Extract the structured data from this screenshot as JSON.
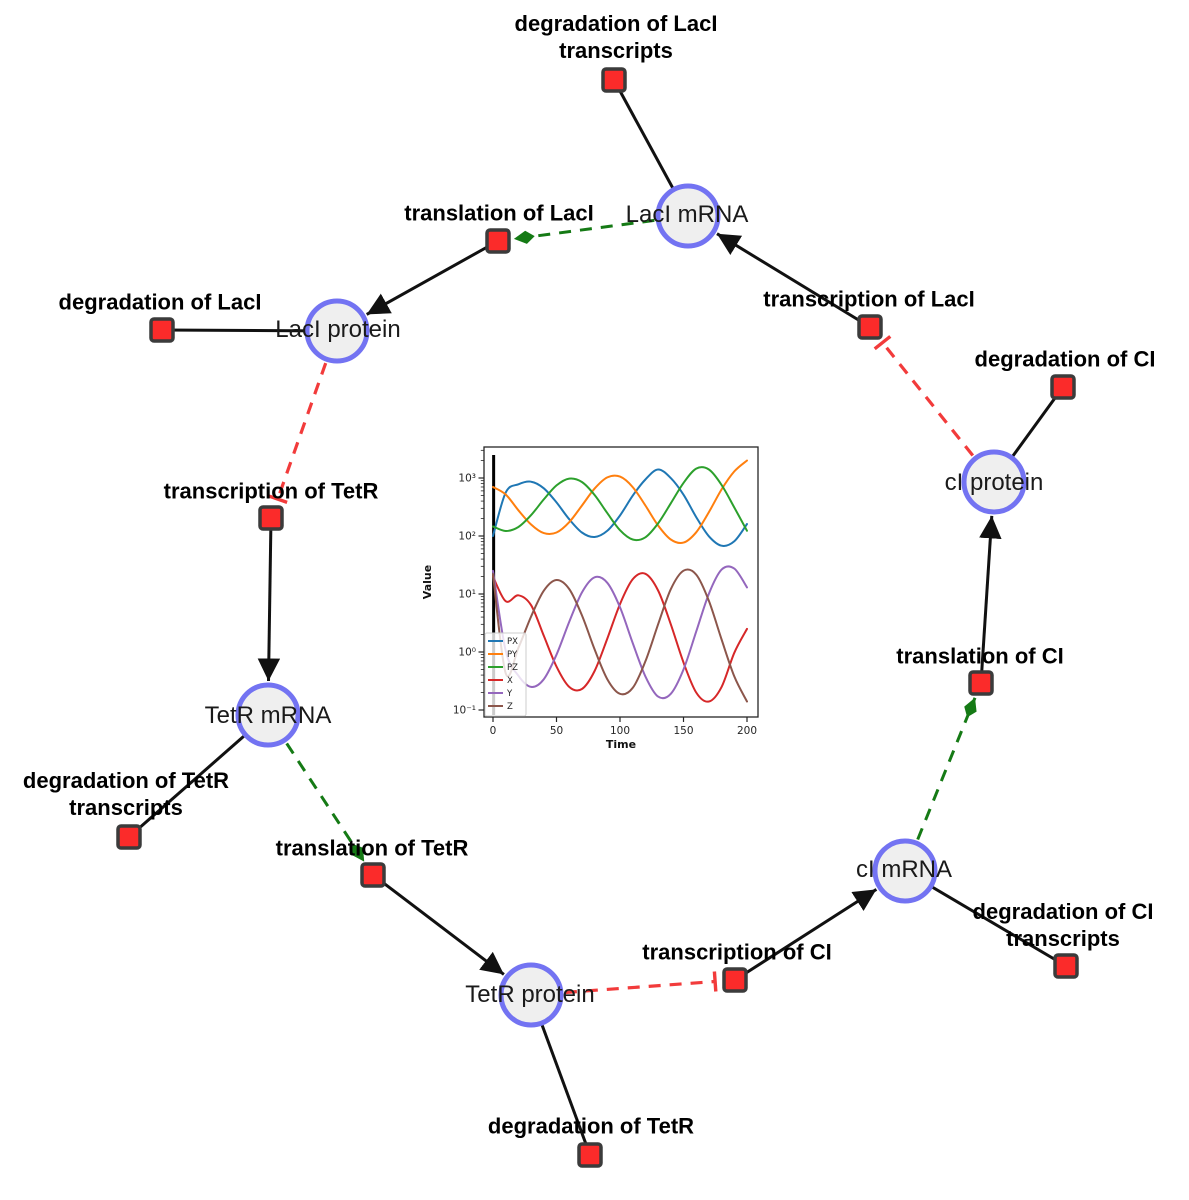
{
  "diagram": {
    "species": [
      {
        "label": "LacI mRNA"
      },
      {
        "label": "LacI protein"
      },
      {
        "label": "TetR mRNA"
      },
      {
        "label": "TetR protein"
      },
      {
        "label": "cI mRNA"
      },
      {
        "label": "cI protein"
      }
    ],
    "reactions": [
      {
        "line1": "degradation of LacI",
        "line2": "transcripts"
      },
      {
        "line1": "translation of LacI"
      },
      {
        "line1": "degradation of LacI"
      },
      {
        "line1": "transcription of LacI"
      },
      {
        "line1": "degradation of CI"
      },
      {
        "line1": "transcription of TetR"
      },
      {
        "line1": "degradation of TetR",
        "line2": "transcripts"
      },
      {
        "line1": "translation of TetR"
      },
      {
        "line1": "translation of CI"
      },
      {
        "line1": "transcription of CI"
      },
      {
        "line1": "degradation of CI",
        "line2": "transcripts"
      },
      {
        "line1": "degradation of TetR"
      }
    ],
    "colors": {
      "species_fill": "#efefef",
      "species_stroke": "#7373f2",
      "reaction_fill": "#fb2b2a",
      "reaction_stroke": "#3b3b3b",
      "flow_edge": "#111111",
      "activation_edge": "#157a15",
      "inhibition_edge": "#f23b3b"
    }
  },
  "chart_data": {
    "type": "line",
    "title": "",
    "xlabel": "Time",
    "ylabel": "Value",
    "y_scale": "log",
    "x_ticks": [
      0,
      50,
      100,
      150,
      200
    ],
    "y_tick_labels": [
      "10⁻¹",
      "10⁰",
      "10¹",
      "10²",
      "10³"
    ],
    "y_tick_exponents": [
      -1,
      0,
      1,
      2,
      3
    ],
    "xlim": [
      -7,
      208
    ],
    "ylim": [
      0.076,
      3500
    ],
    "grid": false,
    "legend_position": "lower left",
    "x": [
      0,
      10,
      20,
      30,
      40,
      50,
      60,
      70,
      80,
      90,
      100,
      110,
      120,
      130,
      140,
      150,
      160,
      170,
      180,
      190,
      200
    ],
    "series": [
      {
        "name": "PX",
        "color": "#1f77b4",
        "values": [
          100,
          560,
          778,
          865,
          664,
          379,
          195,
          115,
          96,
          123,
          226,
          495,
          944,
          1400,
          995,
          516,
          212,
          99,
          68,
          81,
          161
        ]
      },
      {
        "name": "PY",
        "color": "#ff7f0e",
        "values": [
          700,
          520,
          277,
          158,
          112,
          115,
          173,
          334,
          656,
          1024,
          1059,
          698,
          336,
          152,
          87,
          77,
          116,
          258,
          635,
          1300,
          2000
        ]
      },
      {
        "name": "PZ",
        "color": "#2ca02c",
        "values": [
          146,
          122,
          143,
          229,
          428,
          745,
          975,
          853,
          510,
          248,
          126,
          87,
          95,
          165,
          366,
          822,
          1450,
          1400,
          758,
          310,
          123
        ]
      },
      {
        "name": "X",
        "color": "#d62728",
        "values": [
          20,
          7.5,
          9.5,
          6.4,
          1.9,
          0.56,
          0.25,
          0.23,
          0.47,
          1.7,
          6.7,
          17.9,
          22.3,
          11.5,
          3.0,
          0.66,
          0.2,
          0.14,
          0.25,
          0.97,
          2.5
        ]
      },
      {
        "name": "Y",
        "color": "#9467bd",
        "values": [
          25,
          1.05,
          0.39,
          0.25,
          0.34,
          0.9,
          3.3,
          10.6,
          19.4,
          15.6,
          5.9,
          1.43,
          0.38,
          0.17,
          0.19,
          0.5,
          2.25,
          10.1,
          26.3,
          27.4,
          13
        ]
      },
      {
        "name": "Z",
        "color": "#8c564b",
        "values": [
          22,
          0.43,
          1.18,
          4.1,
          11.4,
          17.4,
          12.2,
          4.3,
          1.11,
          0.34,
          0.19,
          0.24,
          0.69,
          3.0,
          12.1,
          25.2,
          21.6,
          7.6,
          1.64,
          0.38,
          0.14
        ]
      }
    ],
    "annotations": [
      {
        "type": "vline",
        "x": 0.5,
        "color": "#000000"
      }
    ]
  }
}
